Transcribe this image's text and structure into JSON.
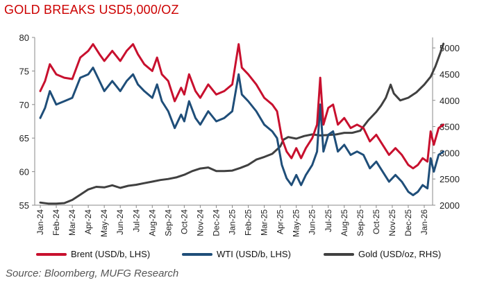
{
  "title": "GOLD BREAKS USD5,000/OZ",
  "source": "Source: Bloomberg, MUFG Research",
  "chart_data": {
    "type": "line",
    "x": [
      "Jan-24",
      "Feb-24",
      "Mar-24",
      "Apr-24",
      "May-24",
      "Jun-24",
      "Jul-24",
      "Aug-24",
      "Sep-24",
      "Oct-24",
      "Nov-24",
      "Dec-24",
      "Jan-25",
      "Feb-25",
      "Mar-25",
      "Apr-25",
      "May-25",
      "Jun-25",
      "Jul-25",
      "Aug-25",
      "Sep-25",
      "Oct-25",
      "Nov-25",
      "Dec-25",
      "Jan-26"
    ],
    "ylim_left": [
      55,
      80
    ],
    "ylim_right": [
      2000,
      5200
    ],
    "yticks_left": [
      55,
      60,
      65,
      70,
      75,
      80
    ],
    "yticks_right": [
      2000,
      2500,
      3000,
      3500,
      4000,
      4500,
      5000
    ],
    "series": [
      {
        "name": "Brent (USD/b, LHS)",
        "axis": "left",
        "color": "#c8102e",
        "values": [
          [
            0,
            72.0
          ],
          [
            0.3,
            73.5
          ],
          [
            0.6,
            76.0
          ],
          [
            1.0,
            74.5
          ],
          [
            1.5,
            74.0
          ],
          [
            2.0,
            73.8
          ],
          [
            2.5,
            77.0
          ],
          [
            3.0,
            78.0
          ],
          [
            3.3,
            79.0
          ],
          [
            3.7,
            77.5
          ],
          [
            4.0,
            76.5
          ],
          [
            4.5,
            78.0
          ],
          [
            5.0,
            76.5
          ],
          [
            5.4,
            78.0
          ],
          [
            5.8,
            79.0
          ],
          [
            6.1,
            77.5
          ],
          [
            6.5,
            76.0
          ],
          [
            7.0,
            75.0
          ],
          [
            7.3,
            77.0
          ],
          [
            7.6,
            74.5
          ],
          [
            8.0,
            73.5
          ],
          [
            8.4,
            70.5
          ],
          [
            8.8,
            72.5
          ],
          [
            9.0,
            71.5
          ],
          [
            9.3,
            74.5
          ],
          [
            9.7,
            72.0
          ],
          [
            10.0,
            71.0
          ],
          [
            10.5,
            73.0
          ],
          [
            11.0,
            71.5
          ],
          [
            11.5,
            72.0
          ],
          [
            12.0,
            73.0
          ],
          [
            12.4,
            79.0
          ],
          [
            12.6,
            75.5
          ],
          [
            13.0,
            74.5
          ],
          [
            13.5,
            73.0
          ],
          [
            14.0,
            71.0
          ],
          [
            14.5,
            70.0
          ],
          [
            14.8,
            69.0
          ],
          [
            15.1,
            65.0
          ],
          [
            15.4,
            63.0
          ],
          [
            15.7,
            62.0
          ],
          [
            16.0,
            63.5
          ],
          [
            16.3,
            62.0
          ],
          [
            16.6,
            63.5
          ],
          [
            17.0,
            65.0
          ],
          [
            17.3,
            67.0
          ],
          [
            17.5,
            74.0
          ],
          [
            17.7,
            67.0
          ],
          [
            18.0,
            69.5
          ],
          [
            18.3,
            70.0
          ],
          [
            18.6,
            67.0
          ],
          [
            19.0,
            68.0
          ],
          [
            19.4,
            66.5
          ],
          [
            19.8,
            67.0
          ],
          [
            20.2,
            66.5
          ],
          [
            20.6,
            64.5
          ],
          [
            21.0,
            65.5
          ],
          [
            21.4,
            64.0
          ],
          [
            21.8,
            62.5
          ],
          [
            22.2,
            63.5
          ],
          [
            22.6,
            62.5
          ],
          [
            23.0,
            61.0
          ],
          [
            23.3,
            60.5
          ],
          [
            23.6,
            61.0
          ],
          [
            23.9,
            62.0
          ],
          [
            24.2,
            61.5
          ],
          [
            24.4,
            66.0
          ],
          [
            24.6,
            64.0
          ],
          [
            24.9,
            66.5
          ],
          [
            25.2,
            67.0
          ]
        ]
      },
      {
        "name": "WTI (USD/b, LHS)",
        "axis": "left",
        "color": "#1f4e79",
        "values": [
          [
            0,
            68.0
          ],
          [
            0.3,
            69.5
          ],
          [
            0.6,
            72.0
          ],
          [
            1.0,
            70.0
          ],
          [
            1.5,
            70.5
          ],
          [
            2.0,
            71.0
          ],
          [
            2.5,
            74.0
          ],
          [
            3.0,
            74.5
          ],
          [
            3.3,
            75.5
          ],
          [
            3.7,
            73.5
          ],
          [
            4.0,
            72.0
          ],
          [
            4.5,
            73.5
          ],
          [
            5.0,
            72.0
          ],
          [
            5.4,
            73.5
          ],
          [
            5.8,
            74.5
          ],
          [
            6.1,
            73.0
          ],
          [
            6.5,
            72.0
          ],
          [
            7.0,
            71.0
          ],
          [
            7.3,
            73.0
          ],
          [
            7.6,
            70.5
          ],
          [
            8.0,
            69.0
          ],
          [
            8.4,
            66.5
          ],
          [
            8.8,
            68.5
          ],
          [
            9.0,
            67.5
          ],
          [
            9.3,
            70.5
          ],
          [
            9.7,
            68.0
          ],
          [
            10.0,
            67.0
          ],
          [
            10.5,
            69.0
          ],
          [
            11.0,
            67.5
          ],
          [
            11.5,
            68.0
          ],
          [
            12.0,
            69.0
          ],
          [
            12.4,
            74.5
          ],
          [
            12.6,
            71.5
          ],
          [
            13.0,
            70.5
          ],
          [
            13.5,
            69.0
          ],
          [
            14.0,
            67.0
          ],
          [
            14.5,
            66.0
          ],
          [
            14.8,
            65.0
          ],
          [
            15.1,
            61.0
          ],
          [
            15.4,
            59.0
          ],
          [
            15.7,
            58.0
          ],
          [
            16.0,
            59.5
          ],
          [
            16.3,
            58.0
          ],
          [
            16.6,
            59.5
          ],
          [
            17.0,
            61.0
          ],
          [
            17.3,
            63.0
          ],
          [
            17.5,
            70.0
          ],
          [
            17.7,
            63.0
          ],
          [
            18.0,
            65.5
          ],
          [
            18.3,
            66.0
          ],
          [
            18.6,
            63.0
          ],
          [
            19.0,
            64.0
          ],
          [
            19.4,
            62.5
          ],
          [
            19.8,
            63.0
          ],
          [
            20.2,
            62.5
          ],
          [
            20.6,
            60.5
          ],
          [
            21.0,
            61.5
          ],
          [
            21.4,
            60.0
          ],
          [
            21.8,
            58.5
          ],
          [
            22.2,
            59.5
          ],
          [
            22.6,
            58.5
          ],
          [
            23.0,
            57.0
          ],
          [
            23.3,
            56.5
          ],
          [
            23.6,
            57.0
          ],
          [
            23.9,
            58.0
          ],
          [
            24.2,
            57.5
          ],
          [
            24.4,
            62.0
          ],
          [
            24.6,
            60.0
          ],
          [
            24.9,
            62.5
          ],
          [
            25.2,
            63.0
          ]
        ]
      },
      {
        "name": "Gold (USD/oz, RHS)",
        "axis": "right",
        "color": "#404040",
        "values": [
          [
            0,
            2050
          ],
          [
            0.5,
            2030
          ],
          [
            1.0,
            2030
          ],
          [
            1.5,
            2040
          ],
          [
            2.0,
            2100
          ],
          [
            2.5,
            2200
          ],
          [
            3.0,
            2300
          ],
          [
            3.5,
            2350
          ],
          [
            4.0,
            2340
          ],
          [
            4.5,
            2380
          ],
          [
            5.0,
            2330
          ],
          [
            5.5,
            2370
          ],
          [
            6.0,
            2390
          ],
          [
            6.5,
            2420
          ],
          [
            7.0,
            2450
          ],
          [
            7.5,
            2480
          ],
          [
            8.0,
            2500
          ],
          [
            8.5,
            2530
          ],
          [
            9.0,
            2580
          ],
          [
            9.5,
            2650
          ],
          [
            10.0,
            2700
          ],
          [
            10.5,
            2720
          ],
          [
            11.0,
            2650
          ],
          [
            11.5,
            2650
          ],
          [
            12.0,
            2660
          ],
          [
            12.5,
            2710
          ],
          [
            13.0,
            2770
          ],
          [
            13.5,
            2870
          ],
          [
            14.0,
            2920
          ],
          [
            14.5,
            2980
          ],
          [
            15.0,
            3120
          ],
          [
            15.2,
            3250
          ],
          [
            15.5,
            3300
          ],
          [
            16.0,
            3270
          ],
          [
            16.5,
            3320
          ],
          [
            17.0,
            3350
          ],
          [
            17.5,
            3330
          ],
          [
            18.0,
            3340
          ],
          [
            18.5,
            3350
          ],
          [
            19.0,
            3380
          ],
          [
            19.5,
            3380
          ],
          [
            20.0,
            3420
          ],
          [
            20.5,
            3620
          ],
          [
            21.0,
            3780
          ],
          [
            21.3,
            3900
          ],
          [
            21.6,
            4050
          ],
          [
            21.9,
            4300
          ],
          [
            22.1,
            4130
          ],
          [
            22.5,
            4000
          ],
          [
            23.0,
            4050
          ],
          [
            23.5,
            4150
          ],
          [
            24.0,
            4300
          ],
          [
            24.4,
            4450
          ],
          [
            24.7,
            4650
          ],
          [
            25.0,
            4900
          ],
          [
            25.2,
            5080
          ]
        ]
      }
    ],
    "legend": [
      "Brent (USD/b, LHS)",
      "WTI (USD/b, LHS)",
      "Gold (USD/oz, RHS)"
    ]
  },
  "colors": {
    "brent": "#c8102e",
    "wti": "#1f4e79",
    "gold": "#404040",
    "title": "#cc0000"
  }
}
